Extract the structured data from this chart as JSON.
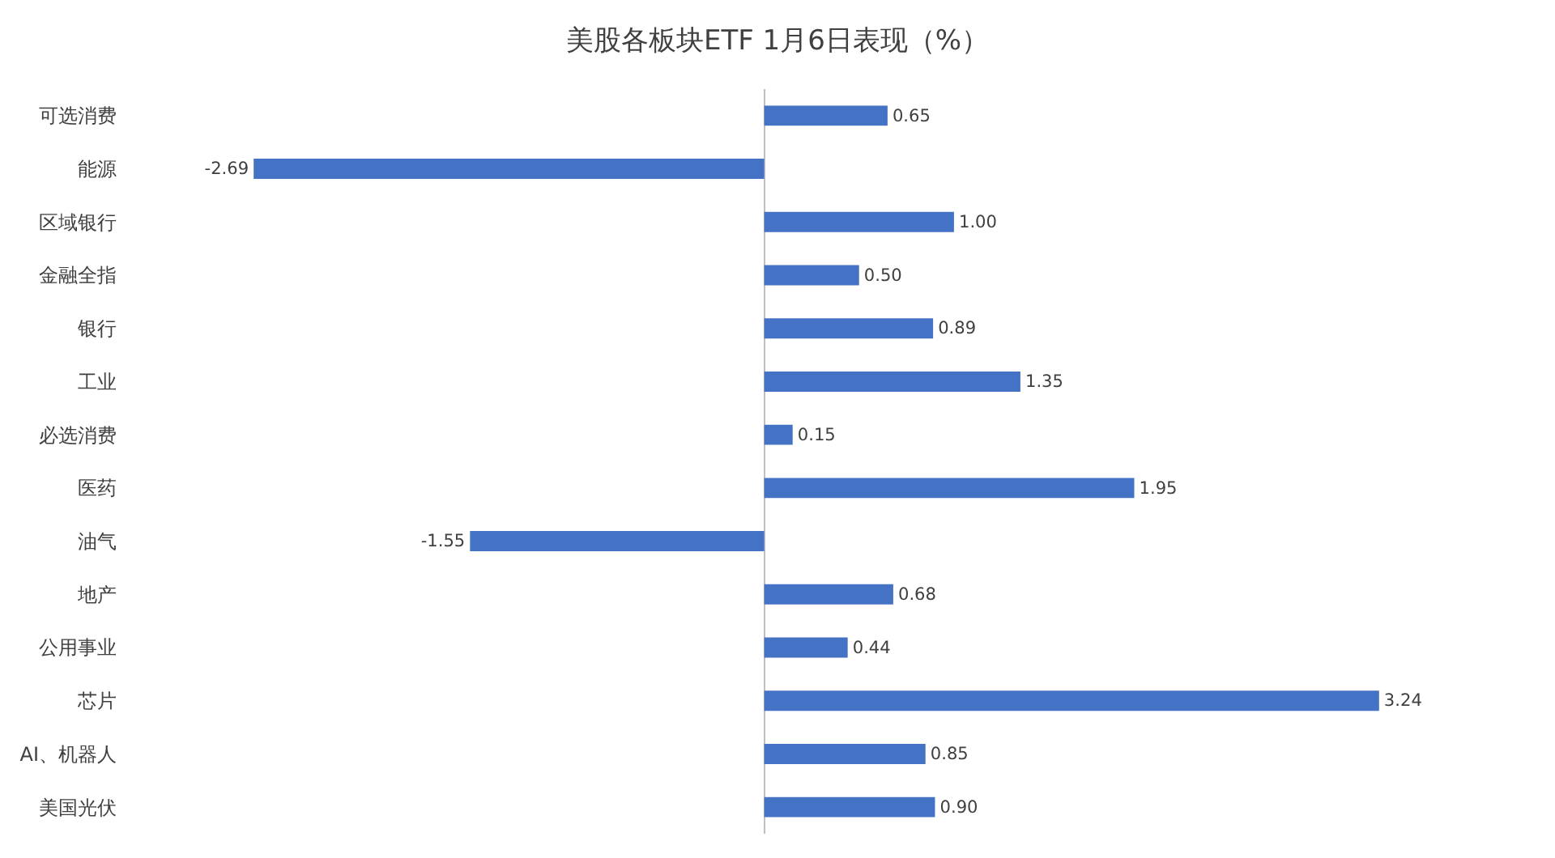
{
  "chart_data": {
    "type": "bar",
    "orientation": "horizontal",
    "title": "美股各板块ETF 1月6日表现（%）",
    "categories": [
      "可选消费",
      "能源",
      "区域银行",
      "金融全指",
      "银行",
      "工业",
      "必选消费",
      "医药",
      "油气",
      "地产",
      "公用事业",
      "芯片",
      "AI、机器人",
      "美国光伏"
    ],
    "values": [
      0.65,
      -2.69,
      1.0,
      0.5,
      0.89,
      1.35,
      0.15,
      1.95,
      -1.55,
      0.68,
      0.44,
      3.24,
      0.85,
      0.9
    ],
    "value_labels": [
      "0.65",
      "-2.69",
      "1.00",
      "0.50",
      "0.89",
      "1.35",
      "0.15",
      "1.95",
      "-1.55",
      "0.68",
      "0.44",
      "3.24",
      "0.85",
      "0.90"
    ],
    "color": "#4472c4",
    "legend": false
  }
}
